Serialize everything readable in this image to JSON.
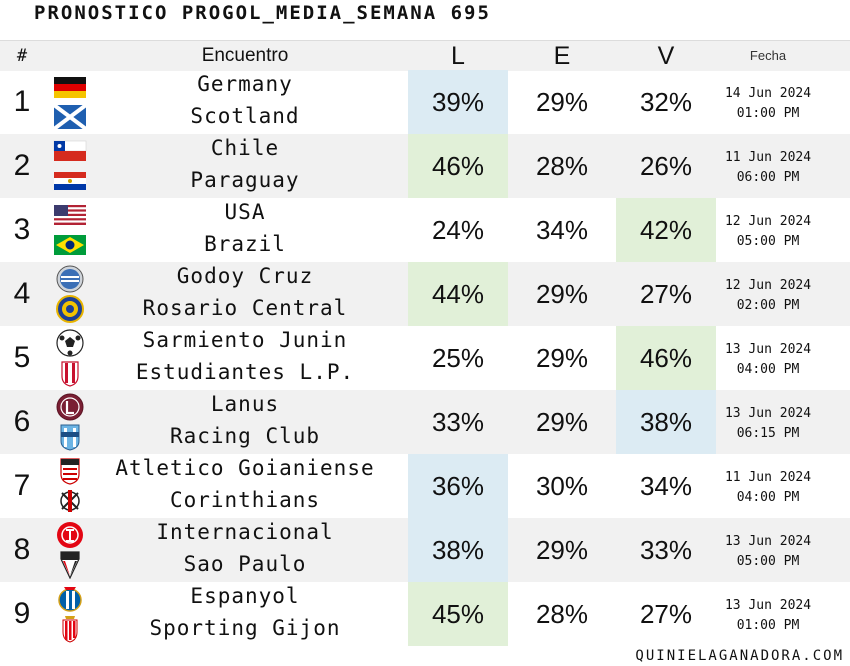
{
  "title": "PRONOSTICO PROGOL_MEDIA_SEMANA 695",
  "footer": "QUINIELAGANADORA.COM",
  "headers": {
    "num": "#",
    "match": "Encuentro",
    "l": "L",
    "e": "E",
    "v": "V",
    "date": "Fecha"
  },
  "colors": {
    "highlight_blue": "#dcebf3",
    "highlight_green": "#e1f0d8",
    "stripe": "#f1f1f1"
  },
  "rows": [
    {
      "num": "1",
      "home": "Germany",
      "away": "Scotland",
      "l": "39%",
      "e": "29%",
      "v": "32%",
      "date": "14 Jun 2024",
      "time": "01:00 PM",
      "highlight": "l",
      "highlight_color": "blue",
      "home_crest": "germany-flag-icon",
      "away_crest": "scotland-flag-icon"
    },
    {
      "num": "2",
      "home": "Chile",
      "away": "Paraguay",
      "l": "46%",
      "e": "28%",
      "v": "26%",
      "date": "11 Jun 2024",
      "time": "06:00 PM",
      "highlight": "l",
      "highlight_color": "green",
      "home_crest": "chile-flag-icon",
      "away_crest": "paraguay-flag-icon"
    },
    {
      "num": "3",
      "home": "USA",
      "away": "Brazil",
      "l": "24%",
      "e": "34%",
      "v": "42%",
      "date": "12 Jun 2024",
      "time": "05:00 PM",
      "highlight": "v",
      "highlight_color": "green",
      "home_crest": "usa-flag-icon",
      "away_crest": "brazil-flag-icon"
    },
    {
      "num": "4",
      "home": "Godoy Cruz",
      "away": "Rosario Central",
      "l": "44%",
      "e": "29%",
      "v": "27%",
      "date": "12 Jun 2024",
      "time": "02:00 PM",
      "highlight": "l",
      "highlight_color": "green",
      "home_crest": "godoy-cruz-crest-icon",
      "away_crest": "rosario-central-crest-icon"
    },
    {
      "num": "5",
      "home": "Sarmiento Junin",
      "away": "Estudiantes L.P.",
      "l": "25%",
      "e": "29%",
      "v": "46%",
      "date": "13 Jun 2024",
      "time": "04:00 PM",
      "highlight": "v",
      "highlight_color": "green",
      "home_crest": "sarmiento-crest-icon",
      "away_crest": "estudiantes-crest-icon"
    },
    {
      "num": "6",
      "home": "Lanus",
      "away": "Racing Club",
      "l": "33%",
      "e": "29%",
      "v": "38%",
      "date": "13 Jun 2024",
      "time": "06:15 PM",
      "highlight": "v",
      "highlight_color": "blue",
      "home_crest": "lanus-crest-icon",
      "away_crest": "racing-crest-icon"
    },
    {
      "num": "7",
      "home": "Atletico Goianiense",
      "away": "Corinthians",
      "l": "36%",
      "e": "30%",
      "v": "34%",
      "date": "11 Jun 2024",
      "time": "04:00 PM",
      "highlight": "l",
      "highlight_color": "blue",
      "home_crest": "atletico-goianiense-crest-icon",
      "away_crest": "corinthians-crest-icon"
    },
    {
      "num": "8",
      "home": "Internacional",
      "away": "Sao Paulo",
      "l": "38%",
      "e": "29%",
      "v": "33%",
      "date": "13 Jun 2024",
      "time": "05:00 PM",
      "highlight": "l",
      "highlight_color": "blue",
      "home_crest": "internacional-crest-icon",
      "away_crest": "sao-paulo-crest-icon"
    },
    {
      "num": "9",
      "home": "Espanyol",
      "away": "Sporting Gijon",
      "l": "45%",
      "e": "28%",
      "v": "27%",
      "date": "13 Jun 2024",
      "time": "01:00 PM",
      "highlight": "l",
      "highlight_color": "green",
      "home_crest": "espanyol-crest-icon",
      "away_crest": "sporting-gijon-crest-icon"
    }
  ]
}
